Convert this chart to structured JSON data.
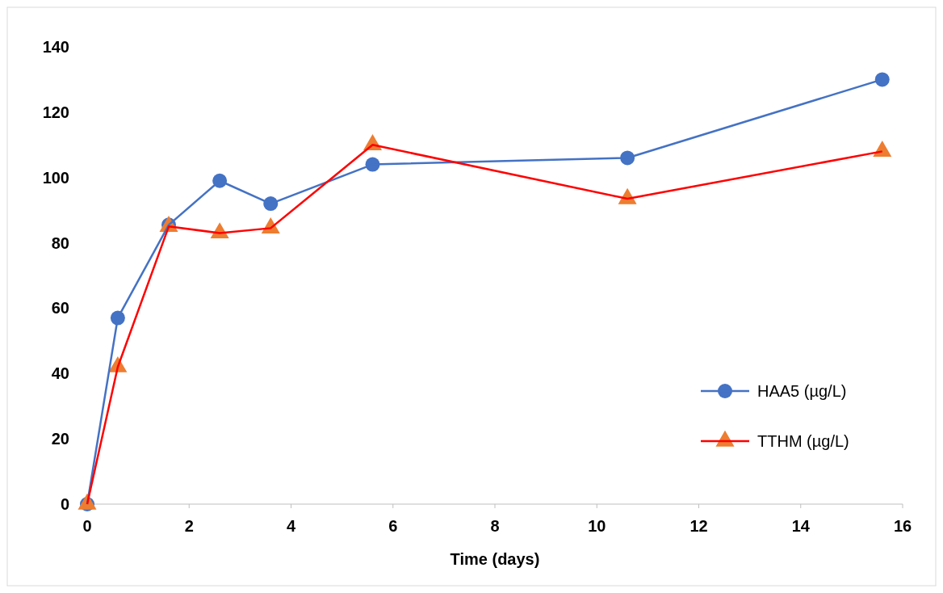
{
  "chart_data": {
    "type": "line",
    "xlabel": "Time (days)",
    "xlim": [
      0,
      16
    ],
    "xticks": [
      0,
      2,
      4,
      6,
      8,
      10,
      12,
      14,
      16
    ],
    "ylim": [
      0,
      140
    ],
    "yticks": [
      0,
      20,
      40,
      60,
      80,
      100,
      120,
      140
    ],
    "grid": false,
    "legend": "bottom right",
    "line_style": "solid",
    "series": [
      {
        "name": "HAA5 (µg/L)",
        "color": "#4472c4",
        "marker": "circle",
        "x": [
          0,
          0.6,
          1.6,
          2.6,
          3.6,
          5.6,
          10.6,
          15.6
        ],
        "values": [
          0,
          57,
          85.5,
          99,
          92,
          104,
          106,
          130
        ]
      },
      {
        "name": "TTHM (µg/L)",
        "color": "#ff0000",
        "colors": [
          "#ed7d31",
          "#ed7d31",
          "#ed7d31",
          "#ed7d31",
          "#ed7d31",
          "#ed7d31",
          "#ed7d31",
          "#ed7d31"
        ],
        "marker": "triangle",
        "x": [
          0,
          0.6,
          1.6,
          2.6,
          3.6,
          5.6,
          10.6,
          15.6
        ],
        "values": [
          0,
          42,
          85,
          83,
          84.5,
          110,
          93.5,
          108
        ]
      }
    ]
  }
}
